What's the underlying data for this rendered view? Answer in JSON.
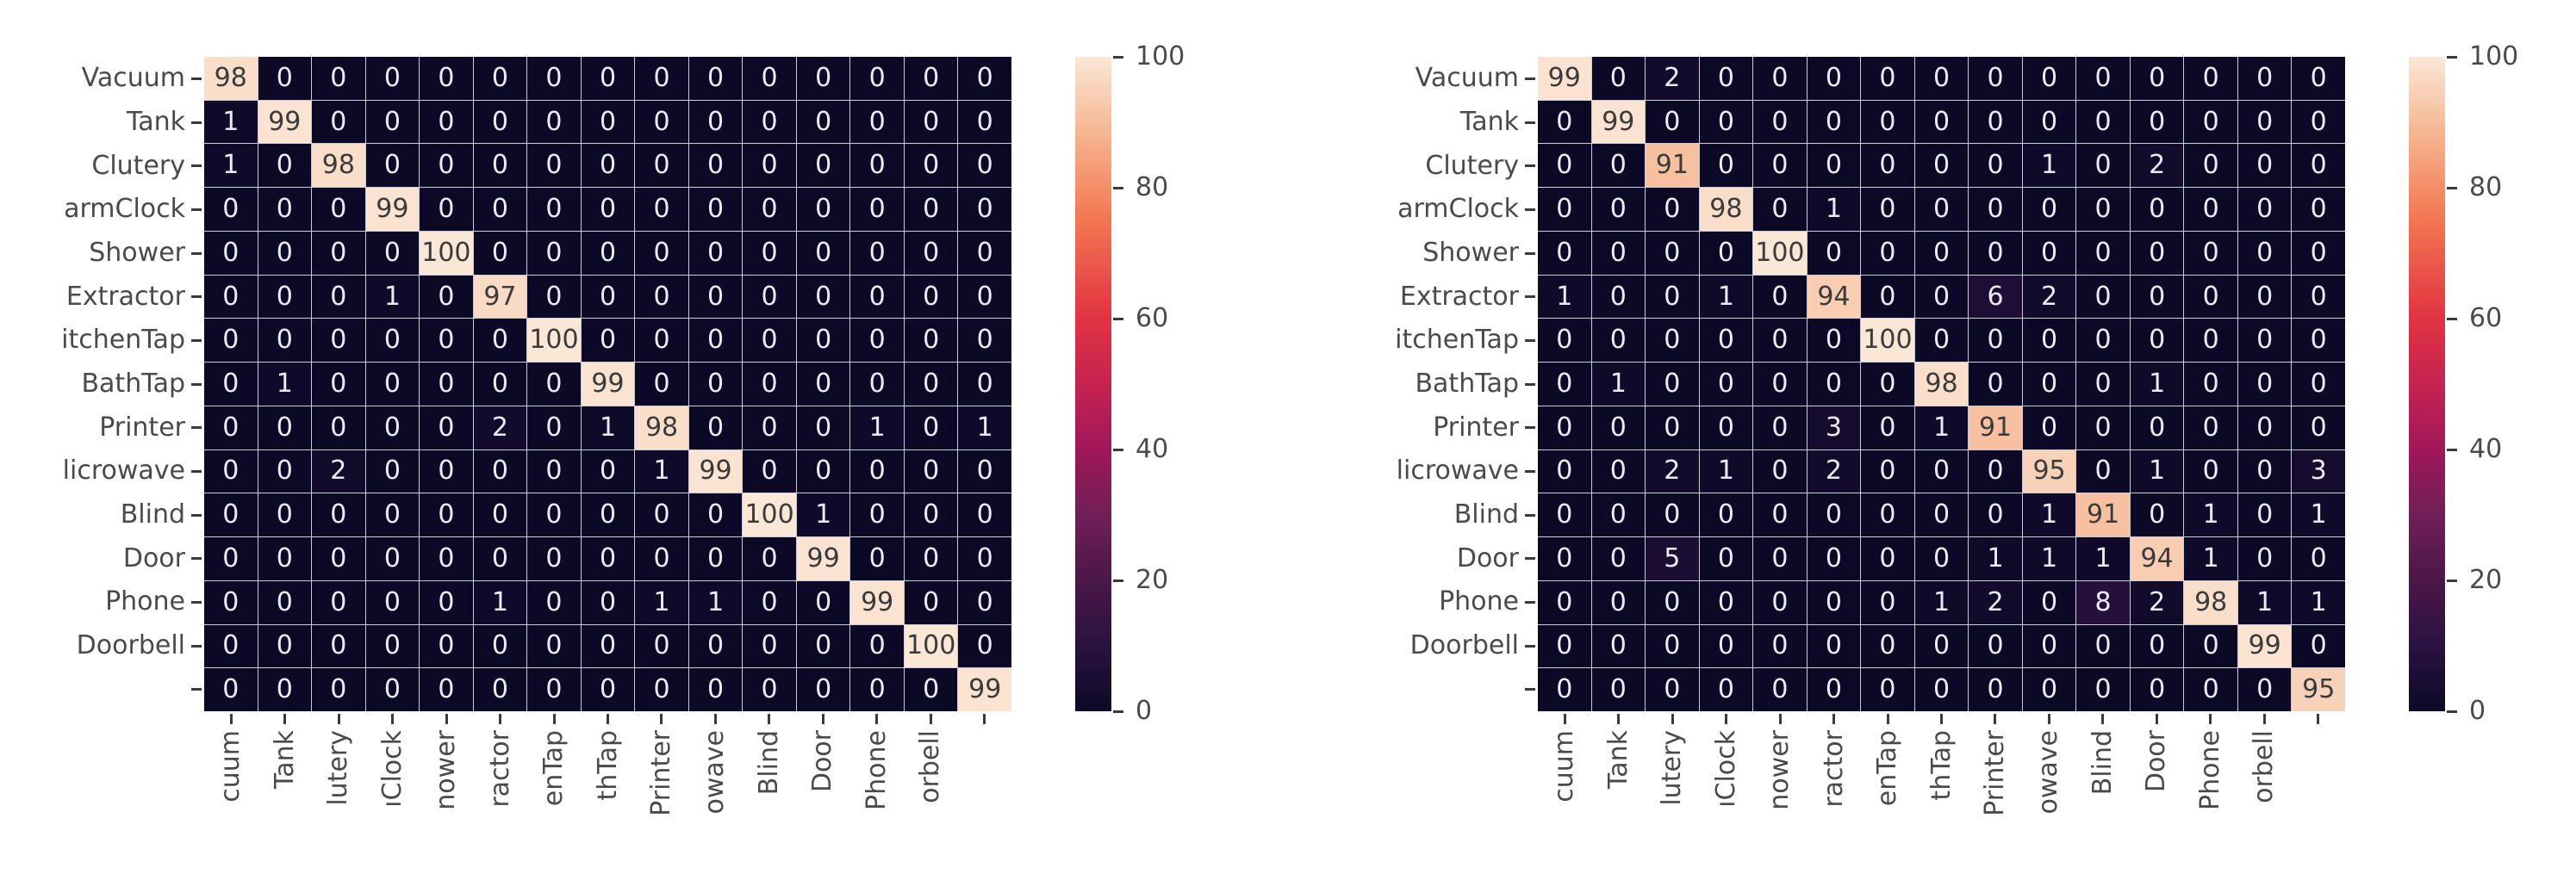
{
  "page": {
    "background": "#ffffff"
  },
  "colors": {
    "dark_text": "#3b3b3b",
    "light_text": "#edeaf4",
    "axis_text": "#4a4a4a",
    "tick_mark": "#3a3a3a",
    "grid_line": "rgba(140,142,168,0.45)",
    "colormap_stops": [
      [
        0.0,
        "#0C0926"
      ],
      [
        0.1,
        "#2A1240"
      ],
      [
        0.2,
        "#4B1747"
      ],
      [
        0.3,
        "#701F57"
      ],
      [
        0.4,
        "#A1175A"
      ],
      [
        0.5,
        "#C52350"
      ],
      [
        0.6,
        "#E13342"
      ],
      [
        0.75,
        "#F37651"
      ],
      [
        0.88,
        "#F6B48F"
      ],
      [
        1.0,
        "#FAE7D6"
      ]
    ]
  },
  "chart_data": [
    {
      "type": "heatmap",
      "title": "",
      "colormap": "rocket",
      "vmin": 0,
      "vmax": 100,
      "legend_position": "right-colorbar",
      "grid": true,
      "row_labels": [
        "Vacuum",
        "Tank",
        "Clutery",
        "armClock",
        "Shower",
        "Extractor",
        "itchenTap",
        "BathTap",
        "Printer",
        "licrowave",
        "Blind",
        "Door",
        "Phone",
        "Doorbell",
        ""
      ],
      "col_labels": [
        "cuum",
        "Tank",
        "lutery",
        "ıClock",
        "nower",
        "ractor",
        "enTap",
        "thTap",
        "Printer",
        "owave",
        "Blind",
        "Door",
        "Phone",
        "orbell",
        ""
      ],
      "values": [
        [
          98,
          0,
          0,
          0,
          0,
          0,
          0,
          0,
          0,
          0,
          0,
          0,
          0,
          0,
          0
        ],
        [
          1,
          99,
          0,
          0,
          0,
          0,
          0,
          0,
          0,
          0,
          0,
          0,
          0,
          0,
          0
        ],
        [
          1,
          0,
          98,
          0,
          0,
          0,
          0,
          0,
          0,
          0,
          0,
          0,
          0,
          0,
          0
        ],
        [
          0,
          0,
          0,
          99,
          0,
          0,
          0,
          0,
          0,
          0,
          0,
          0,
          0,
          0,
          0
        ],
        [
          0,
          0,
          0,
          0,
          100,
          0,
          0,
          0,
          0,
          0,
          0,
          0,
          0,
          0,
          0
        ],
        [
          0,
          0,
          0,
          1,
          0,
          97,
          0,
          0,
          0,
          0,
          0,
          0,
          0,
          0,
          0
        ],
        [
          0,
          0,
          0,
          0,
          0,
          0,
          100,
          0,
          0,
          0,
          0,
          0,
          0,
          0,
          0
        ],
        [
          0,
          1,
          0,
          0,
          0,
          0,
          0,
          99,
          0,
          0,
          0,
          0,
          0,
          0,
          0
        ],
        [
          0,
          0,
          0,
          0,
          0,
          2,
          0,
          1,
          98,
          0,
          0,
          0,
          1,
          0,
          1
        ],
        [
          0,
          0,
          2,
          0,
          0,
          0,
          0,
          0,
          1,
          99,
          0,
          0,
          0,
          0,
          0
        ],
        [
          0,
          0,
          0,
          0,
          0,
          0,
          0,
          0,
          0,
          0,
          100,
          1,
          0,
          0,
          0
        ],
        [
          0,
          0,
          0,
          0,
          0,
          0,
          0,
          0,
          0,
          0,
          0,
          99,
          0,
          0,
          0
        ],
        [
          0,
          0,
          0,
          0,
          0,
          1,
          0,
          0,
          1,
          1,
          0,
          0,
          99,
          0,
          0
        ],
        [
          0,
          0,
          0,
          0,
          0,
          0,
          0,
          0,
          0,
          0,
          0,
          0,
          0,
          100,
          0
        ],
        [
          0,
          0,
          0,
          0,
          0,
          0,
          0,
          0,
          0,
          0,
          0,
          0,
          0,
          0,
          99
        ]
      ],
      "colorbar_ticks": [
        100,
        80,
        60,
        40,
        20,
        0
      ]
    },
    {
      "type": "heatmap",
      "title": "",
      "colormap": "rocket",
      "vmin": 0,
      "vmax": 100,
      "legend_position": "right-colorbar",
      "grid": true,
      "row_labels": [
        "Vacuum",
        "Tank",
        "Clutery",
        "armClock",
        "Shower",
        "Extractor",
        "itchenTap",
        "BathTap",
        "Printer",
        "licrowave",
        "Blind",
        "Door",
        "Phone",
        "Doorbell",
        ""
      ],
      "col_labels": [
        "cuum",
        "Tank",
        "lutery",
        "ıClock",
        "nower",
        "ractor",
        "enTap",
        "thTap",
        "Printer",
        "owave",
        "Blind",
        "Door",
        "Phone",
        "orbell",
        ""
      ],
      "values": [
        [
          99,
          0,
          2,
          0,
          0,
          0,
          0,
          0,
          0,
          0,
          0,
          0,
          0,
          0,
          0
        ],
        [
          0,
          99,
          0,
          0,
          0,
          0,
          0,
          0,
          0,
          0,
          0,
          0,
          0,
          0,
          0
        ],
        [
          0,
          0,
          91,
          0,
          0,
          0,
          0,
          0,
          0,
          1,
          0,
          2,
          0,
          0,
          0
        ],
        [
          0,
          0,
          0,
          98,
          0,
          1,
          0,
          0,
          0,
          0,
          0,
          0,
          0,
          0,
          0
        ],
        [
          0,
          0,
          0,
          0,
          100,
          0,
          0,
          0,
          0,
          0,
          0,
          0,
          0,
          0,
          0
        ],
        [
          1,
          0,
          0,
          1,
          0,
          94,
          0,
          0,
          6,
          2,
          0,
          0,
          0,
          0,
          0
        ],
        [
          0,
          0,
          0,
          0,
          0,
          0,
          100,
          0,
          0,
          0,
          0,
          0,
          0,
          0,
          0
        ],
        [
          0,
          1,
          0,
          0,
          0,
          0,
          0,
          98,
          0,
          0,
          0,
          1,
          0,
          0,
          0
        ],
        [
          0,
          0,
          0,
          0,
          0,
          3,
          0,
          1,
          91,
          0,
          0,
          0,
          0,
          0,
          0
        ],
        [
          0,
          0,
          2,
          1,
          0,
          2,
          0,
          0,
          0,
          95,
          0,
          1,
          0,
          0,
          3
        ],
        [
          0,
          0,
          0,
          0,
          0,
          0,
          0,
          0,
          0,
          1,
          91,
          0,
          1,
          0,
          1
        ],
        [
          0,
          0,
          5,
          0,
          0,
          0,
          0,
          0,
          1,
          1,
          1,
          94,
          1,
          0,
          0
        ],
        [
          0,
          0,
          0,
          0,
          0,
          0,
          0,
          1,
          2,
          0,
          8,
          2,
          98,
          1,
          1
        ],
        [
          0,
          0,
          0,
          0,
          0,
          0,
          0,
          0,
          0,
          0,
          0,
          0,
          0,
          99,
          0
        ],
        [
          0,
          0,
          0,
          0,
          0,
          0,
          0,
          0,
          0,
          0,
          0,
          0,
          0,
          0,
          95
        ]
      ],
      "colorbar_ticks": [
        100,
        80,
        60,
        40,
        20,
        0
      ]
    }
  ]
}
